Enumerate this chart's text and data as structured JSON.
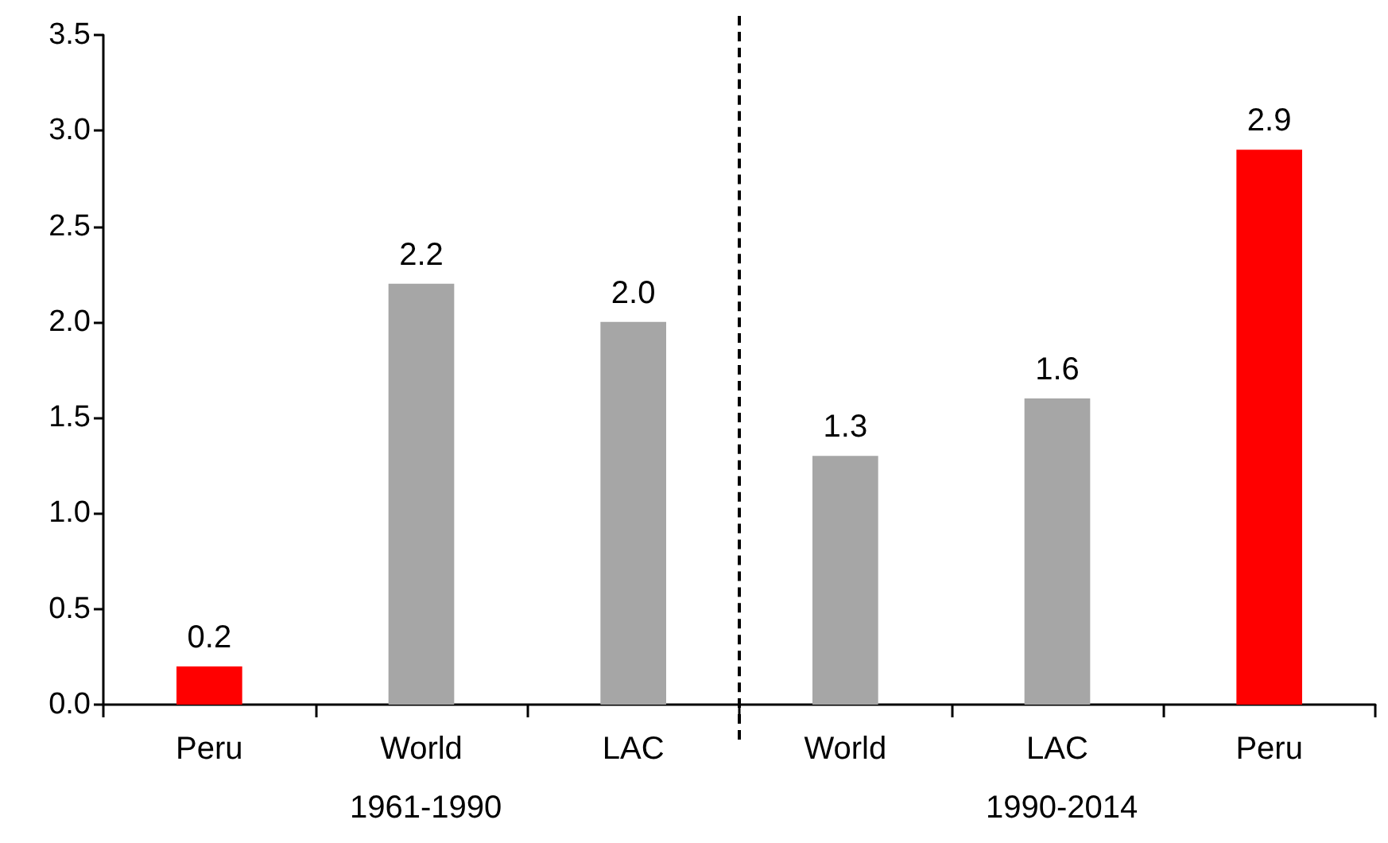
{
  "chart_data": {
    "type": "bar",
    "categories": [
      "Peru",
      "World",
      "LAC",
      "World",
      "LAC",
      "Peru"
    ],
    "values": [
      0.2,
      2.2,
      2.0,
      1.3,
      1.6,
      2.9
    ],
    "colors": [
      "#ff0000",
      "#a6a6a6",
      "#a6a6a6",
      "#a6a6a6",
      "#a6a6a6",
      "#ff0000"
    ],
    "ylim": [
      0,
      3.5
    ],
    "yticks": [
      {
        "value": 0,
        "label": "0.0"
      },
      {
        "value": 0.5,
        "label": "0.5"
      },
      {
        "value": 1,
        "label": "1.0"
      },
      {
        "value": 1.5,
        "label": "1.5"
      },
      {
        "value": 2,
        "label": "2.0"
      },
      {
        "value": 2.5,
        "label": "2.5"
      },
      {
        "value": 3,
        "label": "3.0"
      },
      {
        "value": 3.5,
        "label": "3.5"
      }
    ],
    "value_labels": [
      "0.2",
      "2.2",
      "2.0",
      "1.3",
      "1.6",
      "2.9"
    ],
    "annotations": [
      "1961-1990",
      "1990-2014"
    ]
  }
}
